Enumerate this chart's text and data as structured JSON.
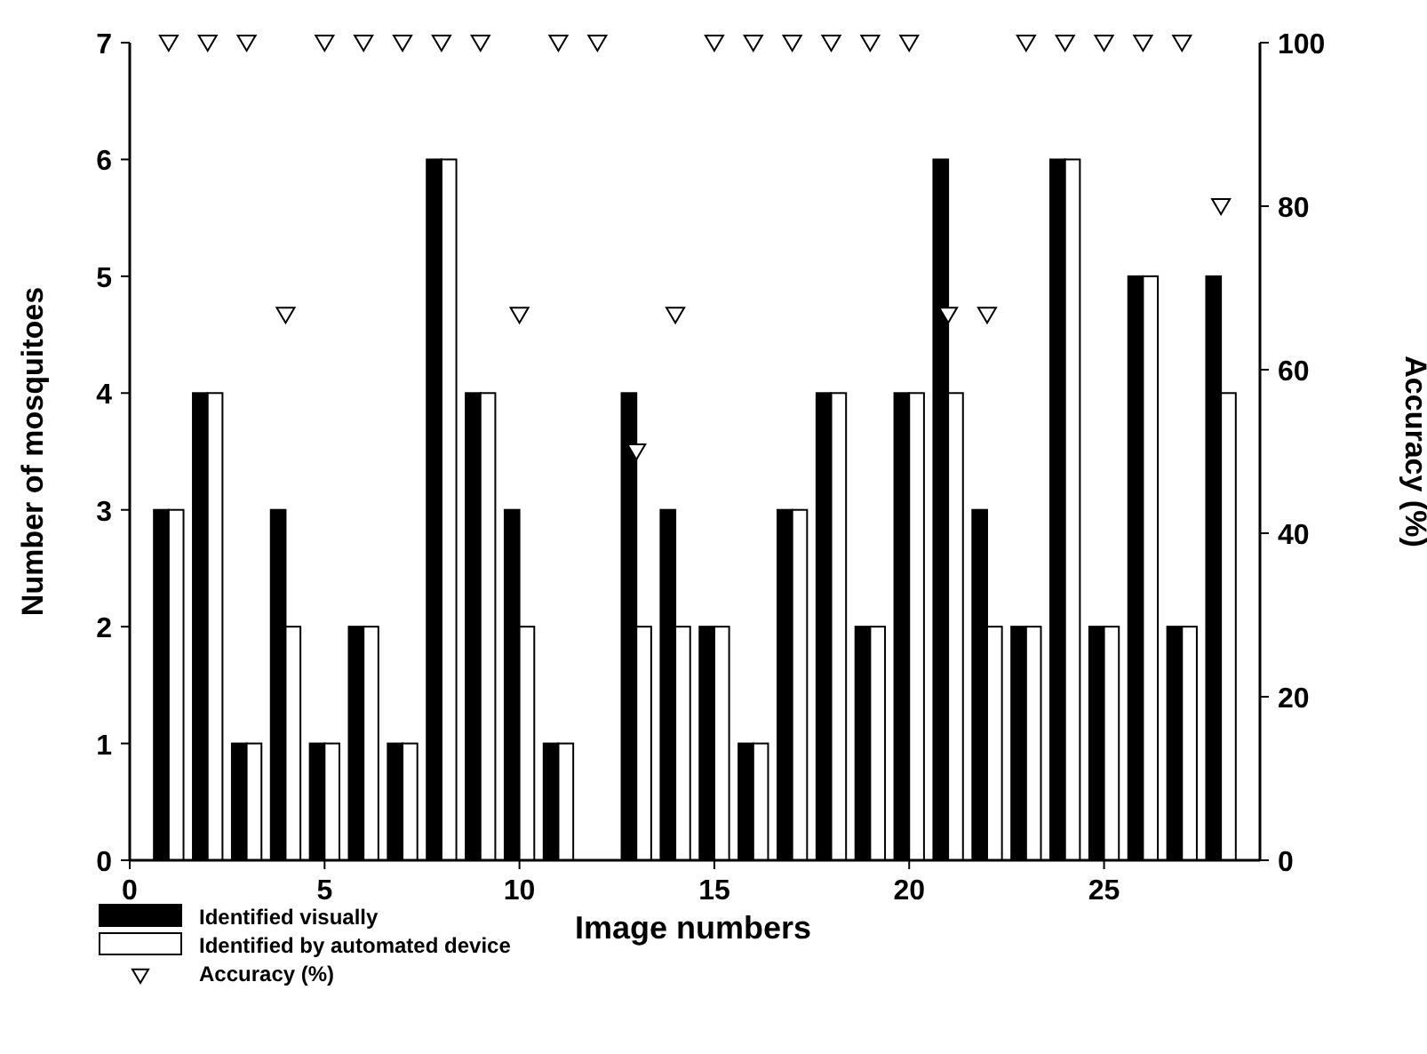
{
  "chart_data": {
    "type": "bar",
    "xlabel": "Image numbers",
    "ylabel": "Number of mosquitoes",
    "y2label": "Accuracy (%)",
    "x": [
      1,
      2,
      3,
      4,
      5,
      6,
      7,
      8,
      9,
      10,
      11,
      12,
      13,
      14,
      15,
      16,
      17,
      18,
      19,
      20,
      21,
      22,
      23,
      24,
      25,
      26,
      27,
      28
    ],
    "series": [
      {
        "name": "Identified visually",
        "color": "#000000",
        "values": [
          3,
          4,
          1,
          3,
          1,
          2,
          1,
          6,
          4,
          3,
          1,
          0,
          4,
          3,
          2,
          1,
          3,
          4,
          2,
          4,
          6,
          3,
          2,
          6,
          2,
          5,
          2,
          5
        ]
      },
      {
        "name": "Identified by automated device",
        "color": "#ffffff",
        "values": [
          3,
          4,
          1,
          2,
          1,
          2,
          1,
          6,
          4,
          2,
          1,
          0,
          2,
          2,
          2,
          1,
          3,
          4,
          2,
          4,
          4,
          2,
          2,
          6,
          2,
          5,
          2,
          4
        ]
      },
      {
        "name": "Accuracy (%)",
        "type": "scatter",
        "axis": "y2",
        "marker": "triangle",
        "color": "#ffffff",
        "values": [
          100,
          100,
          100,
          66.7,
          100,
          100,
          100,
          100,
          100,
          66.7,
          100,
          100,
          50,
          66.7,
          100,
          100,
          100,
          100,
          100,
          100,
          66.7,
          66.7,
          100,
          100,
          100,
          100,
          100,
          80
        ]
      }
    ],
    "xlim": [
      0,
      29
    ],
    "xticks": [
      0,
      5,
      10,
      15,
      20,
      25
    ],
    "ylim": [
      0,
      7
    ],
    "yticks": [
      0,
      1,
      2,
      3,
      4,
      5,
      6,
      7
    ],
    "y2lim": [
      0,
      100
    ],
    "y2ticks": [
      0,
      20,
      40,
      60,
      80,
      100
    ],
    "grid": false,
    "legend": "bottom left"
  }
}
